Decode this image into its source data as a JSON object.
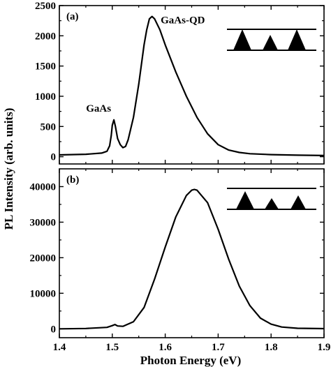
{
  "figure": {
    "ylabel": "PL Intensity (arb. units)",
    "xlabel": "Photon Energy (eV)"
  },
  "chart_data": [
    {
      "type": "line",
      "panel_label": "(a)",
      "xlim": [
        1.4,
        1.9
      ],
      "ylim": [
        -120,
        2500
      ],
      "x_ticks": [
        1.4,
        1.5,
        1.6,
        1.7,
        1.8,
        1.9
      ],
      "y_ticks": [
        0,
        500,
        1000,
        1500,
        2000,
        2500
      ],
      "grid": false,
      "annotations": [
        {
          "text": "GaAs",
          "x": 1.503,
          "y": 610
        },
        {
          "text": "GaAs-QD",
          "x": 1.573,
          "y": 2320
        }
      ],
      "inset": {
        "description_hidden": true,
        "triangles": 3
      },
      "series": [
        {
          "x": [
            1.4,
            1.45,
            1.48,
            1.49,
            1.495,
            1.498,
            1.5,
            1.503,
            1.506,
            1.51,
            1.515,
            1.52,
            1.525,
            1.53,
            1.54,
            1.55,
            1.56,
            1.565,
            1.57,
            1.575,
            1.58,
            1.59,
            1.6,
            1.62,
            1.64,
            1.66,
            1.68,
            1.7,
            1.72,
            1.74,
            1.76,
            1.8,
            1.85,
            1.9
          ],
          "y": [
            30,
            40,
            60,
            90,
            180,
            350,
            520,
            610,
            500,
            300,
            200,
            150,
            170,
            280,
            650,
            1200,
            1850,
            2100,
            2280,
            2320,
            2280,
            2100,
            1850,
            1400,
            1000,
            650,
            380,
            200,
            110,
            70,
            50,
            35,
            25,
            20
          ]
        }
      ]
    },
    {
      "type": "line",
      "panel_label": "(b)",
      "xlim": [
        1.4,
        1.9
      ],
      "ylim": [
        -2500,
        45000
      ],
      "x_ticks": [
        1.4,
        1.5,
        1.6,
        1.7,
        1.8,
        1.9
      ],
      "x_tick_labels": [
        "1.4",
        "1.5",
        "1.6",
        "1.7",
        "1.8",
        "1.9"
      ],
      "y_ticks": [
        0,
        10000,
        20000,
        30000,
        40000
      ],
      "grid": false,
      "inset": {
        "triangles": 3
      },
      "series": [
        {
          "x": [
            1.4,
            1.45,
            1.49,
            1.5,
            1.505,
            1.51,
            1.52,
            1.54,
            1.56,
            1.58,
            1.6,
            1.62,
            1.64,
            1.65,
            1.655,
            1.66,
            1.68,
            1.7,
            1.72,
            1.74,
            1.76,
            1.78,
            1.8,
            1.82,
            1.85,
            1.9
          ],
          "y": [
            0,
            100,
            400,
            900,
            1200,
            800,
            700,
            2000,
            6000,
            14000,
            23000,
            31500,
            37500,
            39000,
            39200,
            39000,
            35500,
            28000,
            19500,
            12000,
            6500,
            3000,
            1300,
            500,
            150,
            50
          ]
        }
      ]
    }
  ]
}
